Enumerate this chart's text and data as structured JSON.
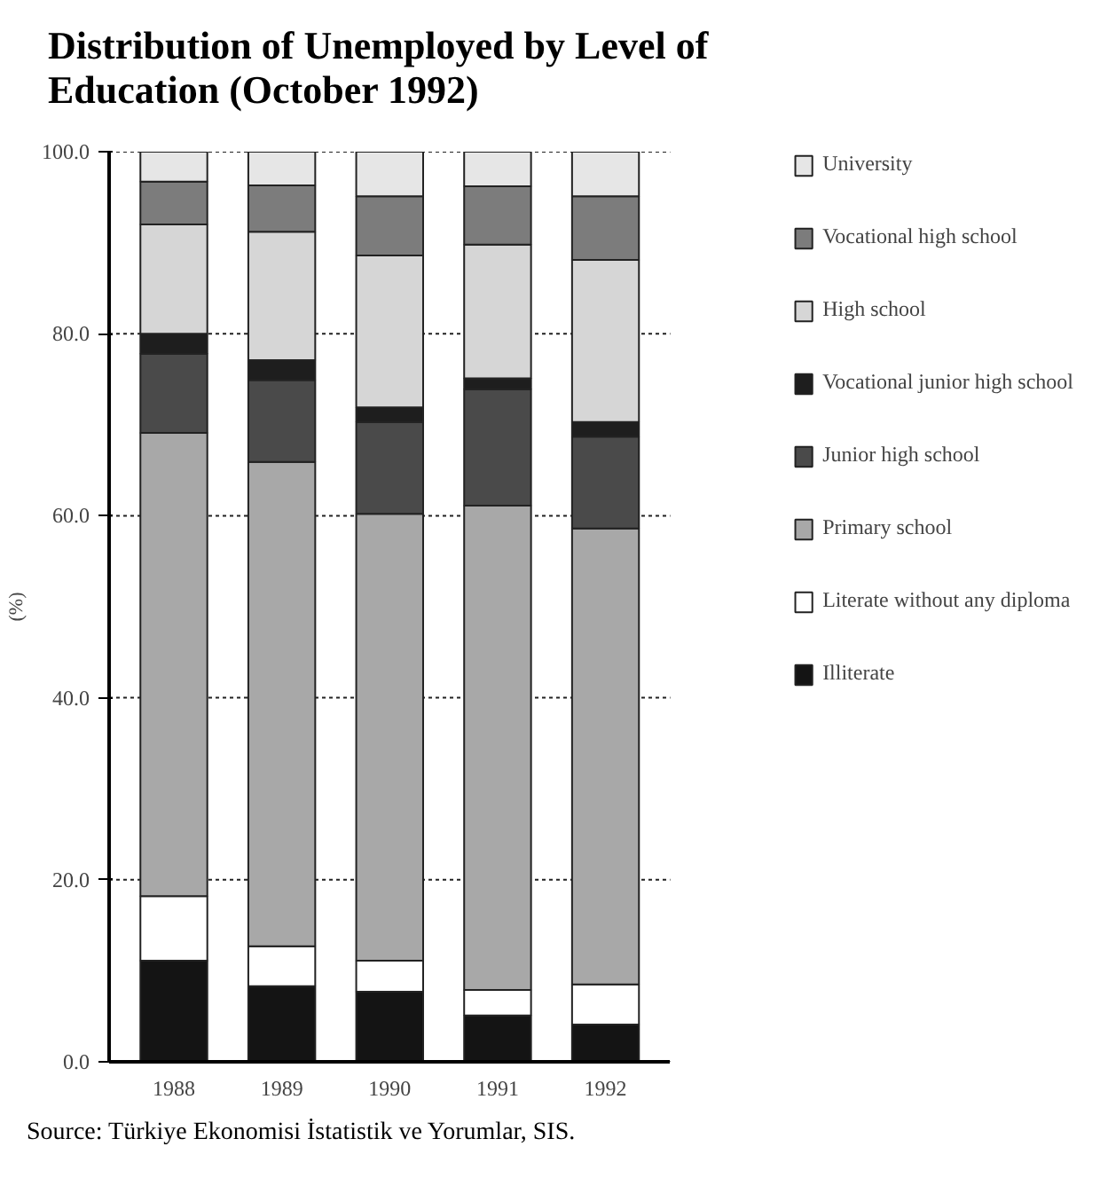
{
  "chart_data": {
    "type": "bar",
    "stacked": true,
    "title": "Distribution of Unemployed by Level of Education (October 1992)",
    "ylabel": "(%)",
    "categories": [
      "1988",
      "1989",
      "1990",
      "1991",
      "1992"
    ],
    "series": [
      {
        "name": "Illiterate",
        "color": "#141414",
        "values": [
          11.1,
          8.3,
          7.7,
          5.1,
          4.1
        ]
      },
      {
        "name": "Literate without any diploma",
        "color": "#ffffff",
        "values": [
          7.1,
          4.4,
          3.4,
          2.8,
          4.4
        ]
      },
      {
        "name": "Primary school",
        "color": "#a8a8a8",
        "values": [
          50.9,
          53.2,
          49.1,
          53.2,
          50.1
        ]
      },
      {
        "name": "Junior high school",
        "color": "#4a4a4a",
        "values": [
          8.7,
          9.0,
          10.1,
          12.8,
          10.1
        ]
      },
      {
        "name": "Vocational junior high school",
        "color": "#1e1e1e",
        "values": [
          2.2,
          2.2,
          1.6,
          1.2,
          1.6
        ]
      },
      {
        "name": "High school",
        "color": "#d6d6d6",
        "values": [
          12.0,
          14.1,
          16.7,
          14.7,
          17.8
        ]
      },
      {
        "name": "Vocational high school",
        "color": "#7c7c7c",
        "values": [
          4.7,
          5.1,
          6.5,
          6.4,
          7.0
        ]
      },
      {
        "name": "University",
        "color": "#e6e6e6",
        "values": [
          3.3,
          3.7,
          4.9,
          3.8,
          4.9
        ]
      }
    ],
    "ylim": [
      0,
      100
    ],
    "yticks": [
      {
        "value": 0,
        "label": "0.0"
      },
      {
        "value": 20,
        "label": "20.0"
      },
      {
        "value": 40,
        "label": "40.0"
      },
      {
        "value": 60,
        "label": "60.0"
      },
      {
        "value": 80,
        "label": "80.0"
      },
      {
        "value": 100,
        "label": "100.0"
      }
    ],
    "grid": "y",
    "legend": "right",
    "annotations": [
      "Source: Türkiye Ekonomisi İstatistik ve Yorumlar, SIS."
    ]
  }
}
